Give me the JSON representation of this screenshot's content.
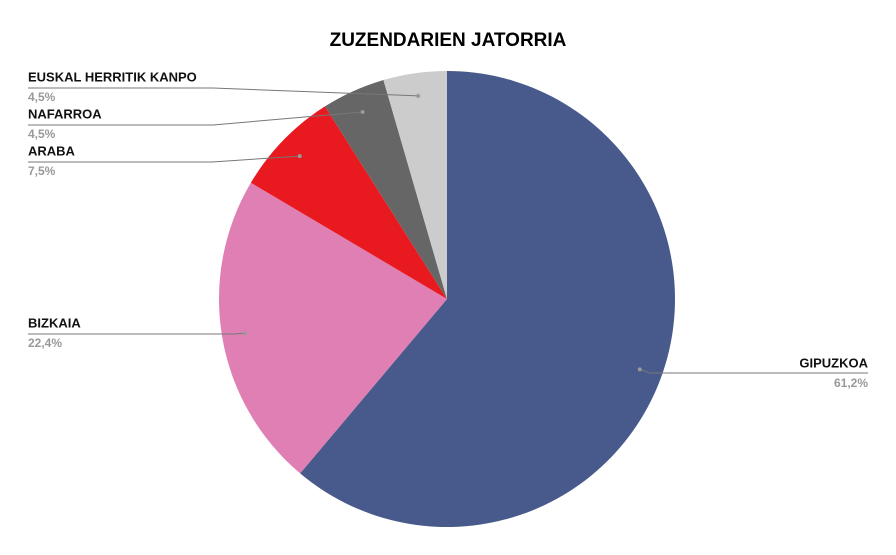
{
  "chart_data": {
    "type": "pie",
    "title": "ZUZENDARIEN JATORRIA",
    "categories": [
      "GIPUZKOA",
      "BIZKAIA",
      "ARABA",
      "NAFARROA",
      "EUSKAL HERRITIK KANPO"
    ],
    "values": [
      61.2,
      22.4,
      7.5,
      4.5,
      4.5
    ],
    "value_labels": [
      "61,2%",
      "22,4%",
      "7,5%",
      "4,5%",
      "4,5%"
    ],
    "colors": [
      "#48598c",
      "#e07fb3",
      "#e8191f",
      "#666666",
      "#cccccc"
    ]
  }
}
